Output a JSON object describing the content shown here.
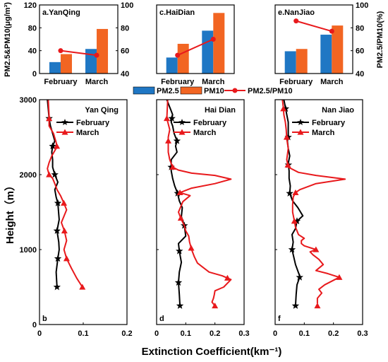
{
  "chart_data": [
    {
      "type": "bar",
      "panel": "a.YanQing",
      "categories": [
        "February",
        "March"
      ],
      "series": [
        {
          "name": "PM2.5",
          "values": [
            20,
            43
          ],
          "color": "#1f77c4"
        },
        {
          "name": "PM10",
          "values": [
            34,
            78
          ],
          "color": "#f26522"
        }
      ],
      "ratio": {
        "name": "PM2.5/PM10",
        "values": [
          60,
          56
        ],
        "color": "#e8191c"
      },
      "ylim": [
        0,
        120
      ],
      "y2lim": [
        40,
        100
      ],
      "yticks": [
        "0",
        "40",
        "80",
        "120"
      ],
      "y2ticks": [
        "40",
        "60",
        "80",
        "100"
      ],
      "ylabel": "PM2.5&PM10(μg/m³)",
      "y2label": ""
    },
    {
      "type": "bar",
      "panel": "c.HaiDian",
      "categories": [
        "February",
        "March"
      ],
      "series": [
        {
          "name": "PM2.5",
          "values": [
            28,
            75
          ],
          "color": "#1f77c4"
        },
        {
          "name": "PM10",
          "values": [
            52,
            106
          ],
          "color": "#f26522"
        }
      ],
      "ratio": {
        "name": "PM2.5/PM10",
        "values": [
          56,
          70
        ],
        "color": "#e8191c"
      },
      "ylim": [
        0,
        120
      ],
      "y2lim": [
        40,
        100
      ],
      "yticks": [],
      "y2ticks": [],
      "ylabel": "",
      "y2label": ""
    },
    {
      "type": "bar",
      "panel": "e.NanJiao",
      "categories": [
        "February",
        "March"
      ],
      "series": [
        {
          "name": "PM2.5",
          "values": [
            39,
            68
          ],
          "color": "#1f77c4"
        },
        {
          "name": "PM10",
          "values": [
            43,
            84
          ],
          "color": "#f26522"
        }
      ],
      "ratio": {
        "name": "PM2.5/PM10",
        "values": [
          86,
          77
        ],
        "color": "#e8191c"
      },
      "ylim": [
        0,
        120
      ],
      "y2lim": [
        40,
        100
      ],
      "yticks": [],
      "y2ticks": [
        "40",
        "60",
        "80",
        "100"
      ],
      "ylabel": "",
      "y2label": "PM2.5/PM10(%)"
    },
    {
      "type": "line",
      "panel": "Yan Qing",
      "corner": "b",
      "xlim": [
        0,
        0.2
      ],
      "xticks": [
        "0",
        "0.1",
        "0.2"
      ],
      "ylim": [
        0,
        3000
      ],
      "yticks": [
        "0",
        "1000",
        "2000",
        "3000"
      ],
      "series": [
        {
          "name": "February",
          "color": "#000000",
          "marker": "star",
          "x": [
            0.04,
            0.038,
            0.042,
            0.045,
            0.044,
            0.04,
            0.045,
            0.042,
            0.038,
            0.035,
            0.042,
            0.035,
            0.03,
            0.03,
            0.028,
            0.03,
            0.035,
            0.03,
            0.025,
            0.022,
            0.02,
            0.018
          ],
          "y": [
            500,
            700,
            880,
            1000,
            1100,
            1250,
            1400,
            1620,
            1700,
            1800,
            1900,
            2000,
            2100,
            2200,
            2300,
            2380,
            2450,
            2550,
            2650,
            2750,
            2880,
            3000
          ],
          "markers_at": [
            500,
            880,
            1250,
            1620,
            2000,
            2380,
            2750
          ]
        },
        {
          "name": "March",
          "color": "#e8191c",
          "marker": "triangle",
          "x": [
            0.098,
            0.085,
            0.073,
            0.062,
            0.056,
            0.062,
            0.057,
            0.05,
            0.062,
            0.055,
            0.048,
            0.04,
            0.035,
            0.03,
            0.022,
            0.018,
            0.022,
            0.028,
            0.04,
            0.038,
            0.032,
            0.022,
            0.022,
            0.02
          ],
          "y": [
            500,
            620,
            750,
            880,
            1000,
            1120,
            1250,
            1360,
            1530,
            1630,
            1720,
            1800,
            1880,
            1950,
            2000,
            2080,
            2160,
            2250,
            2370,
            2430,
            2550,
            2650,
            2780,
            3000
          ],
          "markers_at": [
            500,
            880,
            1250,
            1620,
            2000,
            2380,
            2750
          ]
        }
      ]
    },
    {
      "type": "line",
      "panel": "Hai Dian",
      "corner": "d",
      "xlim": [
        0,
        0.3
      ],
      "xticks": [
        "0",
        "0.1",
        "0.2",
        "0.3"
      ],
      "ylim": [
        0,
        3000
      ],
      "yticks": [],
      "series": [
        {
          "name": "February",
          "color": "#000000",
          "marker": "star",
          "x": [
            0.08,
            0.078,
            0.075,
            0.078,
            0.085,
            0.078,
            0.075,
            0.1,
            0.095,
            0.085,
            0.088,
            0.078,
            0.072,
            0.062,
            0.055,
            0.05,
            0.05,
            0.07,
            0.065,
            0.07,
            0.06,
            0.055,
            0.05,
            0.055,
            0.05,
            0.045,
            0.04,
            0.035
          ],
          "y": [
            250,
            400,
            560,
            700,
            830,
            980,
            1080,
            1180,
            1320,
            1440,
            1560,
            1650,
            1750,
            1850,
            1950,
            2050,
            2200,
            2300,
            2380,
            2450,
            2550,
            2650,
            2700,
            2800,
            2850,
            2900,
            2950,
            3000
          ],
          "markers_at": [
            250,
            560,
            980,
            1320,
            1750,
            2100,
            2450,
            2750
          ]
        },
        {
          "name": "March",
          "color": "#e8191c",
          "marker": "triangle",
          "x": [
            0.2,
            0.19,
            0.195,
            0.198,
            0.2,
            0.23,
            0.255,
            0.225,
            0.18,
            0.16,
            0.14,
            0.13,
            0.12,
            0.113,
            0.11,
            0.1,
            0.095,
            0.085,
            0.075,
            0.09,
            0.115,
            0.08,
            0.12,
            0.2,
            0.255,
            0.2,
            0.12,
            0.075,
            0.055,
            0.045,
            0.04,
            0.04,
            0.04,
            0.045,
            0.035,
            0.038
          ],
          "y": [
            250,
            300,
            350,
            400,
            450,
            500,
            600,
            650,
            700,
            760,
            820,
            900,
            1000,
            1100,
            1180,
            1250,
            1320,
            1400,
            1500,
            1640,
            1720,
            1760,
            1820,
            1880,
            1940,
            1990,
            2020,
            2060,
            2100,
            2200,
            2300,
            2400,
            2500,
            2600,
            2750,
            3000
          ],
          "markers_at": [
            250,
            620,
            1020,
            1420,
            1760,
            2100,
            2450,
            2750
          ]
        }
      ]
    },
    {
      "type": "line",
      "panel": "Nan Jiao",
      "corner": "f",
      "xlim": [
        0,
        0.3
      ],
      "xticks": [
        "0",
        "0.1",
        "0.2",
        "0.3"
      ],
      "ylim": [
        0,
        3000
      ],
      "yticks": [],
      "series": [
        {
          "name": "February",
          "color": "#000000",
          "marker": "star",
          "x": [
            0.07,
            0.072,
            0.075,
            0.085,
            0.07,
            0.058,
            0.062,
            0.06,
            0.058,
            0.07,
            0.075,
            0.095,
            0.078,
            0.06,
            0.05,
            0.052,
            0.048,
            0.048,
            0.045,
            0.05,
            0.045,
            0.042,
            0.045,
            0.045,
            0.045,
            0.04,
            0.035,
            0.03
          ],
          "y": [
            250,
            400,
            530,
            640,
            800,
            1000,
            1100,
            1150,
            1200,
            1280,
            1380,
            1450,
            1560,
            1650,
            1750,
            1850,
            1950,
            2050,
            2150,
            2250,
            2350,
            2450,
            2500,
            2600,
            2700,
            2800,
            2900,
            3000
          ],
          "markers_at": [
            250,
            630,
            1000,
            1380,
            1750,
            2130,
            2500,
            2880
          ]
        },
        {
          "name": "March",
          "color": "#e8191c",
          "marker": "triangle",
          "x": [
            0.145,
            0.145,
            0.16,
            0.15,
            0.17,
            0.22,
            0.18,
            0.14,
            0.165,
            0.15,
            0.13,
            0.12,
            0.14,
            0.1,
            0.09,
            0.09,
            0.1,
            0.08,
            0.07,
            0.065,
            0.06,
            0.06,
            0.062,
            0.07,
            0.085,
            0.14,
            0.24,
            0.14,
            0.08,
            0.045,
            0.04,
            0.045,
            0.04,
            0.038,
            0.035,
            0.03,
            0.028,
            0.025
          ],
          "y": [
            280,
            350,
            420,
            470,
            530,
            630,
            680,
            720,
            800,
            870,
            930,
            970,
            1000,
            1050,
            1080,
            1120,
            1150,
            1200,
            1300,
            1400,
            1500,
            1600,
            1700,
            1760,
            1800,
            1880,
            1940,
            1990,
            2030,
            2100,
            2200,
            2350,
            2480,
            2600,
            2700,
            2800,
            2900,
            3000
          ],
          "markers_at": [
            250,
            630,
            1000,
            1380,
            1760,
            2130,
            2500,
            2880
          ]
        }
      ]
    }
  ],
  "text": {
    "bar_ylabel": "PM2.5&PM10(μg/m³)",
    "bar_y2label": "PM2.5/PM10(%)",
    "profile_ylabel": "Height（m）",
    "profile_xlabel": "Extinction Coefficient(km⁻¹)",
    "legend_pm25": "PM2.5",
    "legend_pm10": "PM10",
    "legend_ratio": "PM2.5/PM10",
    "february": "February",
    "march": "March"
  }
}
